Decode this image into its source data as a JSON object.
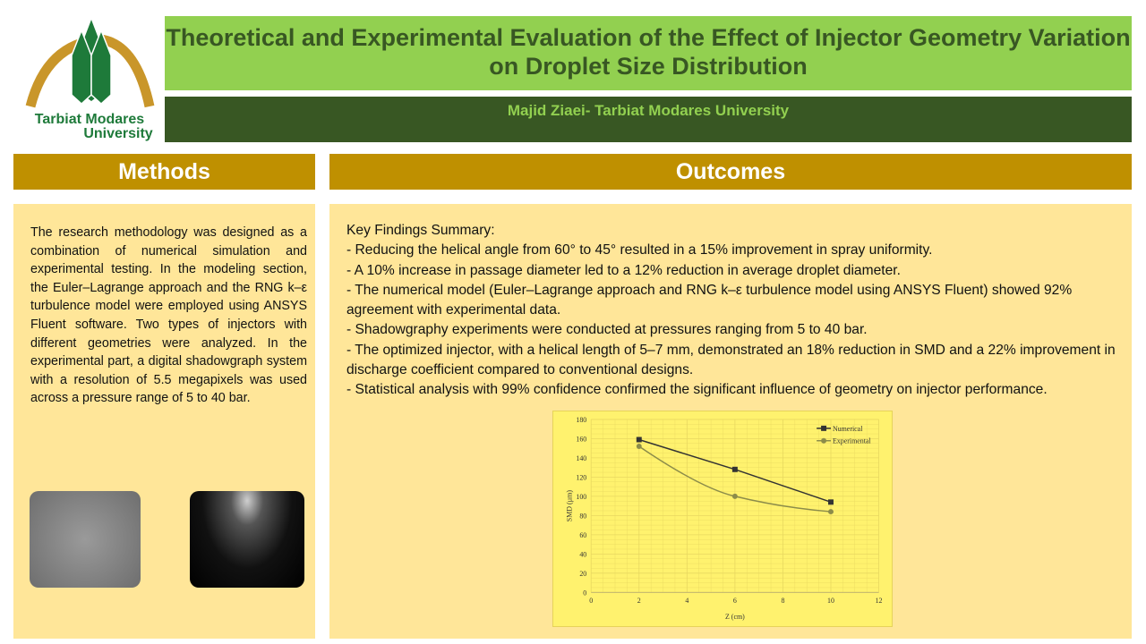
{
  "logo": {
    "text_line1": "Tarbiat Modares",
    "text_line2": "University"
  },
  "header": {
    "title": "Theoretical and Experimental Evaluation of the Effect of Injector Geometry Variation on Droplet Size Distribution",
    "author": "Majid Ziaei- Tarbiat Modares University"
  },
  "methods": {
    "heading": "Methods",
    "text": "The research methodology was designed as a combination of numerical simulation and experimental testing. In the modeling section, the Euler–Lagrange approach and the RNG k–ε turbulence model were employed using ANSYS Fluent software. Two types of injectors with different geometries were analyzed. In the experimental part, a digital shadowgraph system with a resolution of 5.5 megapixels was used across a pressure range of 5 to 40 bar."
  },
  "outcomes": {
    "heading": "Outcomes",
    "lines": [
      "Key Findings Summary:",
      "- Reducing the helical angle from 60° to 45° resulted in a 15% improvement in spray uniformity.",
      "- A 10% increase in passage diameter led to a 12% reduction in average droplet diameter.",
      "- The numerical model (Euler–Lagrange approach and RNG k–ε turbulence model using ANSYS Fluent) showed 92% agreement with experimental data.",
      "- Shadowgraphy experiments were conducted at pressures ranging from 5 to 40 bar.",
      "- The optimized injector, with a helical length of 5–7 mm, demonstrated an 18% reduction in SMD and a 22% improvement in discharge coefficient compared to conventional designs.",
      "- Statistical analysis with 99% confidence confirmed the significant influence of geometry on injector performance."
    ]
  },
  "colors": {
    "title_bg": "#92d050",
    "sub_bg": "#385723",
    "heading_bg": "#bf9000",
    "panel_bg": "#ffe699",
    "chart_bg": "#fff26e"
  },
  "chart_data": {
    "type": "line",
    "xlabel": "Z (cm)",
    "ylabel": "SMD (µm)",
    "xlim": [
      0,
      12
    ],
    "ylim": [
      0,
      180
    ],
    "xticks": [
      0,
      2,
      4,
      6,
      8,
      10,
      12
    ],
    "yticks": [
      0,
      20,
      40,
      60,
      80,
      100,
      120,
      140,
      160,
      180
    ],
    "grid": true,
    "legend": "top-right",
    "series": [
      {
        "name": "Numerical",
        "x": [
          2,
          6,
          10
        ],
        "y": [
          159,
          128,
          94
        ],
        "color": "#333333",
        "marker": "square"
      },
      {
        "name": "Experimental",
        "x": [
          2,
          6,
          10
        ],
        "y": [
          152,
          100,
          84
        ],
        "color": "#8c8c4a",
        "marker": "circle"
      }
    ]
  }
}
